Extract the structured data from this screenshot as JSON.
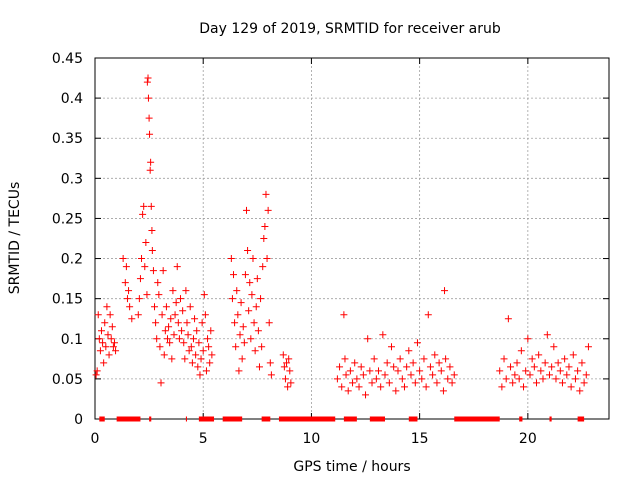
{
  "chart_data": {
    "type": "scatter",
    "title": "Day 129 of 2019, SRMTID for receiver arub",
    "xlabel": "GPS time / hours",
    "ylabel": "SRMTID / TECUs",
    "xlim": [
      0,
      23.75
    ],
    "ylim": [
      0,
      0.45
    ],
    "xticks": [
      0,
      5,
      10,
      15,
      20
    ],
    "xtick_labels": [
      "0",
      "5",
      "10",
      "15",
      "20"
    ],
    "yticks": [
      0,
      0.05,
      0.1,
      0.15,
      0.2,
      0.25,
      0.3,
      0.35,
      0.4,
      0.45
    ],
    "ytick_labels": [
      "0",
      "0.05",
      "0.1",
      "0.15",
      "0.2",
      "0.25",
      "0.3",
      "0.35",
      "0.4",
      "0.45"
    ],
    "grid": true,
    "marker": "+",
    "color": "#ff0000",
    "series": [
      {
        "name": "SRMTID",
        "points": [
          [
            0.05,
            0.055
          ],
          [
            0.1,
            0.06
          ],
          [
            0.15,
            0.13
          ],
          [
            0.2,
            0.1
          ],
          [
            0.25,
            0.085
          ],
          [
            0.3,
            0.11
          ],
          [
            0.35,
            0.095
          ],
          [
            0.4,
            0.07
          ],
          [
            0.45,
            0.12
          ],
          [
            0.5,
            0.09
          ],
          [
            0.55,
            0.14
          ],
          [
            0.6,
            0.105
          ],
          [
            0.65,
            0.08
          ],
          [
            0.7,
            0.13
          ],
          [
            0.75,
            0.1
          ],
          [
            0.8,
            0.115
          ],
          [
            0.85,
            0.09
          ],
          [
            0.9,
            0.095
          ],
          [
            0.95,
            0.085
          ],
          [
            1.3,
            0.2
          ],
          [
            1.4,
            0.17
          ],
          [
            1.45,
            0.19
          ],
          [
            1.5,
            0.15
          ],
          [
            1.55,
            0.16
          ],
          [
            1.6,
            0.14
          ],
          [
            1.7,
            0.125
          ],
          [
            2.0,
            0.13
          ],
          [
            2.05,
            0.15
          ],
          [
            2.1,
            0.175
          ],
          [
            2.15,
            0.2
          ],
          [
            2.2,
            0.255
          ],
          [
            2.25,
            0.265
          ],
          [
            2.3,
            0.19
          ],
          [
            2.35,
            0.22
          ],
          [
            2.4,
            0.155
          ],
          [
            2.42,
            0.42
          ],
          [
            2.45,
            0.425
          ],
          [
            2.47,
            0.4
          ],
          [
            2.5,
            0.375
          ],
          [
            2.52,
            0.355
          ],
          [
            2.55,
            0.31
          ],
          [
            2.57,
            0.32
          ],
          [
            2.6,
            0.265
          ],
          [
            2.63,
            0.235
          ],
          [
            2.65,
            0.21
          ],
          [
            2.7,
            0.185
          ],
          [
            2.75,
            0.14
          ],
          [
            2.8,
            0.12
          ],
          [
            2.85,
            0.1
          ],
          [
            2.9,
            0.17
          ],
          [
            2.95,
            0.155
          ],
          [
            3.0,
            0.09
          ],
          [
            3.05,
            0.045
          ],
          [
            3.1,
            0.13
          ],
          [
            3.15,
            0.185
          ],
          [
            3.2,
            0.08
          ],
          [
            3.25,
            0.11
          ],
          [
            3.3,
            0.14
          ],
          [
            3.35,
            0.1
          ],
          [
            3.4,
            0.115
          ],
          [
            3.45,
            0.095
          ],
          [
            3.5,
            0.125
          ],
          [
            3.55,
            0.075
          ],
          [
            3.6,
            0.16
          ],
          [
            3.65,
            0.105
          ],
          [
            3.7,
            0.13
          ],
          [
            3.75,
            0.145
          ],
          [
            3.8,
            0.19
          ],
          [
            3.85,
            0.12
          ],
          [
            3.9,
            0.1
          ],
          [
            3.95,
            0.15
          ],
          [
            4.0,
            0.11
          ],
          [
            4.05,
            0.135
          ],
          [
            4.1,
            0.095
          ],
          [
            4.15,
            0.075
          ],
          [
            4.2,
            0.16
          ],
          [
            4.25,
            0.12
          ],
          [
            4.3,
            0.105
          ],
          [
            4.35,
            0.085
          ],
          [
            4.4,
            0.14
          ],
          [
            4.45,
            0.09
          ],
          [
            4.5,
            0.07
          ],
          [
            4.55,
            0.1
          ],
          [
            4.6,
            0.125
          ],
          [
            4.65,
            0.08
          ],
          [
            4.7,
            0.11
          ],
          [
            4.75,
            0.065
          ],
          [
            4.8,
            0.095
          ],
          [
            4.85,
            0.055
          ],
          [
            4.9,
            0.075
          ],
          [
            4.95,
            0.12
          ],
          [
            5.0,
            0.085
          ],
          [
            5.05,
            0.155
          ],
          [
            5.1,
            0.13
          ],
          [
            5.15,
            0.06
          ],
          [
            5.2,
            0.1
          ],
          [
            5.25,
            0.09
          ],
          [
            5.3,
            0.07
          ],
          [
            5.35,
            0.11
          ],
          [
            5.4,
            0.08
          ],
          [
            6.3,
            0.2
          ],
          [
            6.35,
            0.15
          ],
          [
            6.4,
            0.18
          ],
          [
            6.45,
            0.12
          ],
          [
            6.5,
            0.09
          ],
          [
            6.55,
            0.16
          ],
          [
            6.6,
            0.13
          ],
          [
            6.65,
            0.06
          ],
          [
            6.7,
            0.105
          ],
          [
            6.75,
            0.145
          ],
          [
            6.8,
            0.075
          ],
          [
            6.85,
            0.115
          ],
          [
            6.9,
            0.095
          ],
          [
            6.95,
            0.18
          ],
          [
            7.0,
            0.26
          ],
          [
            7.05,
            0.21
          ],
          [
            7.1,
            0.135
          ],
          [
            7.15,
            0.17
          ],
          [
            7.2,
            0.1
          ],
          [
            7.25,
            0.155
          ],
          [
            7.3,
            0.2
          ],
          [
            7.35,
            0.12
          ],
          [
            7.4,
            0.085
          ],
          [
            7.45,
            0.14
          ],
          [
            7.5,
            0.175
          ],
          [
            7.55,
            0.11
          ],
          [
            7.6,
            0.065
          ],
          [
            7.65,
            0.15
          ],
          [
            7.7,
            0.09
          ],
          [
            7.75,
            0.19
          ],
          [
            7.8,
            0.225
          ],
          [
            7.85,
            0.24
          ],
          [
            7.9,
            0.28
          ],
          [
            7.95,
            0.2
          ],
          [
            8.0,
            0.26
          ],
          [
            8.05,
            0.12
          ],
          [
            8.1,
            0.07
          ],
          [
            8.15,
            0.055
          ],
          [
            8.7,
            0.08
          ],
          [
            8.75,
            0.065
          ],
          [
            8.8,
            0.05
          ],
          [
            8.85,
            0.07
          ],
          [
            8.9,
            0.04
          ],
          [
            8.95,
            0.075
          ],
          [
            9.0,
            0.06
          ],
          [
            9.05,
            0.045
          ],
          [
            11.2,
            0.05
          ],
          [
            11.3,
            0.065
          ],
          [
            11.4,
            0.04
          ],
          [
            11.5,
            0.13
          ],
          [
            11.55,
            0.075
          ],
          [
            11.6,
            0.055
          ],
          [
            11.7,
            0.035
          ],
          [
            11.8,
            0.06
          ],
          [
            11.9,
            0.045
          ],
          [
            12.0,
            0.07
          ],
          [
            12.1,
            0.05
          ],
          [
            12.2,
            0.04
          ],
          [
            12.3,
            0.065
          ],
          [
            12.4,
            0.055
          ],
          [
            12.5,
            0.03
          ],
          [
            12.6,
            0.1
          ],
          [
            12.7,
            0.06
          ],
          [
            12.8,
            0.045
          ],
          [
            12.9,
            0.075
          ],
          [
            13.0,
            0.05
          ],
          [
            13.1,
            0.06
          ],
          [
            13.2,
            0.04
          ],
          [
            13.3,
            0.105
          ],
          [
            13.4,
            0.055
          ],
          [
            13.5,
            0.07
          ],
          [
            13.6,
            0.045
          ],
          [
            13.7,
            0.09
          ],
          [
            13.8,
            0.065
          ],
          [
            13.9,
            0.035
          ],
          [
            14.0,
            0.06
          ],
          [
            14.1,
            0.075
          ],
          [
            14.2,
            0.05
          ],
          [
            14.3,
            0.04
          ],
          [
            14.4,
            0.065
          ],
          [
            14.5,
            0.085
          ],
          [
            14.6,
            0.055
          ],
          [
            14.7,
            0.07
          ],
          [
            14.8,
            0.045
          ],
          [
            14.9,
            0.095
          ],
          [
            15.0,
            0.06
          ],
          [
            15.1,
            0.05
          ],
          [
            15.2,
            0.075
          ],
          [
            15.3,
            0.04
          ],
          [
            15.4,
            0.13
          ],
          [
            15.5,
            0.065
          ],
          [
            15.6,
            0.055
          ],
          [
            15.7,
            0.08
          ],
          [
            15.8,
            0.045
          ],
          [
            15.9,
            0.07
          ],
          [
            16.0,
            0.06
          ],
          [
            16.1,
            0.035
          ],
          [
            16.15,
            0.16
          ],
          [
            16.2,
            0.075
          ],
          [
            16.3,
            0.05
          ],
          [
            16.4,
            0.065
          ],
          [
            16.5,
            0.045
          ],
          [
            16.6,
            0.055
          ],
          [
            18.7,
            0.06
          ],
          [
            18.8,
            0.04
          ],
          [
            18.9,
            0.075
          ],
          [
            19.0,
            0.05
          ],
          [
            19.1,
            0.125
          ],
          [
            19.2,
            0.065
          ],
          [
            19.3,
            0.045
          ],
          [
            19.4,
            0.055
          ],
          [
            19.5,
            0.07
          ],
          [
            19.6,
            0.05
          ],
          [
            19.7,
            0.085
          ],
          [
            19.8,
            0.04
          ],
          [
            19.9,
            0.06
          ],
          [
            20.0,
            0.1
          ],
          [
            20.1,
            0.055
          ],
          [
            20.2,
            0.075
          ],
          [
            20.3,
            0.065
          ],
          [
            20.4,
            0.045
          ],
          [
            20.5,
            0.08
          ],
          [
            20.6,
            0.06
          ],
          [
            20.7,
            0.05
          ],
          [
            20.8,
            0.07
          ],
          [
            20.9,
            0.105
          ],
          [
            21.0,
            0.055
          ],
          [
            21.1,
            0.065
          ],
          [
            21.2,
            0.09
          ],
          [
            21.3,
            0.05
          ],
          [
            21.4,
            0.07
          ],
          [
            21.5,
            0.06
          ],
          [
            21.6,
            0.045
          ],
          [
            21.7,
            0.075
          ],
          [
            21.8,
            0.055
          ],
          [
            21.9,
            0.065
          ],
          [
            22.0,
            0.04
          ],
          [
            22.1,
            0.08
          ],
          [
            22.2,
            0.05
          ],
          [
            22.3,
            0.06
          ],
          [
            22.4,
            0.035
          ],
          [
            22.5,
            0.07
          ],
          [
            22.6,
            0.045
          ],
          [
            22.7,
            0.055
          ],
          [
            22.8,
            0.09
          ]
        ]
      }
    ],
    "zero_markers_at_y": 0,
    "zero_marker_segments": [
      [
        0.2,
        0.45
      ],
      [
        1.0,
        2.1
      ],
      [
        2.5,
        2.6
      ],
      [
        4.2,
        4.25
      ],
      [
        4.8,
        5.5
      ],
      [
        5.9,
        6.8
      ],
      [
        7.7,
        8.1
      ],
      [
        8.5,
        11.1
      ],
      [
        11.5,
        12.1
      ],
      [
        12.7,
        13.4
      ],
      [
        14.5,
        14.9
      ],
      [
        16.6,
        18.7
      ],
      [
        19.6,
        19.75
      ],
      [
        21.0,
        21.1
      ],
      [
        22.3,
        22.6
      ]
    ]
  }
}
